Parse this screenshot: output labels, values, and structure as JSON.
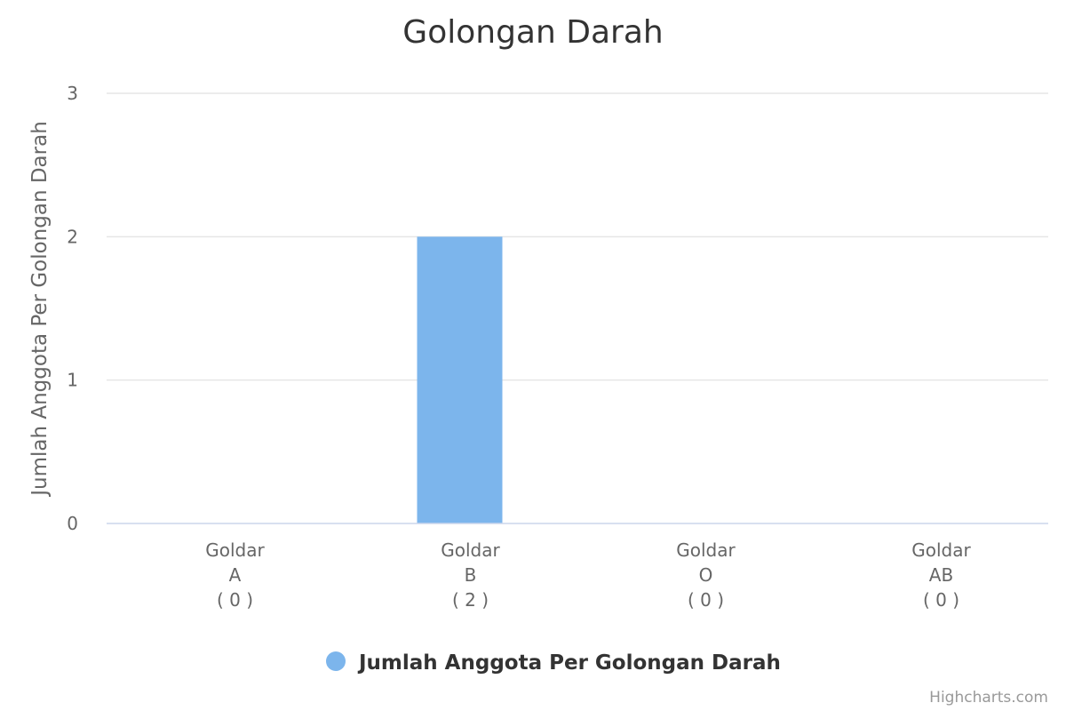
{
  "chart_data": {
    "type": "bar",
    "title": "Golongan Darah",
    "ylabel": "Jumlah Anggota Per Golongan Darah",
    "categories": [
      [
        "Goldar",
        "A",
        "( 0 )"
      ],
      [
        "Goldar",
        "B",
        "( 2 )"
      ],
      [
        "Goldar",
        "O",
        "( 0 )"
      ],
      [
        "Goldar",
        "AB",
        "( 0 )"
      ]
    ],
    "series": [
      {
        "name": "Jumlah Anggota Per Golongan Darah",
        "values": [
          0,
          2,
          0,
          0
        ],
        "color": "#7cb5ec"
      }
    ],
    "ylim": [
      0,
      3
    ],
    "yticks": [
      "0",
      "1",
      "2",
      "3"
    ],
    "grid": true,
    "legend_position": "bottom-center"
  },
  "credits": "Highcharts.com"
}
